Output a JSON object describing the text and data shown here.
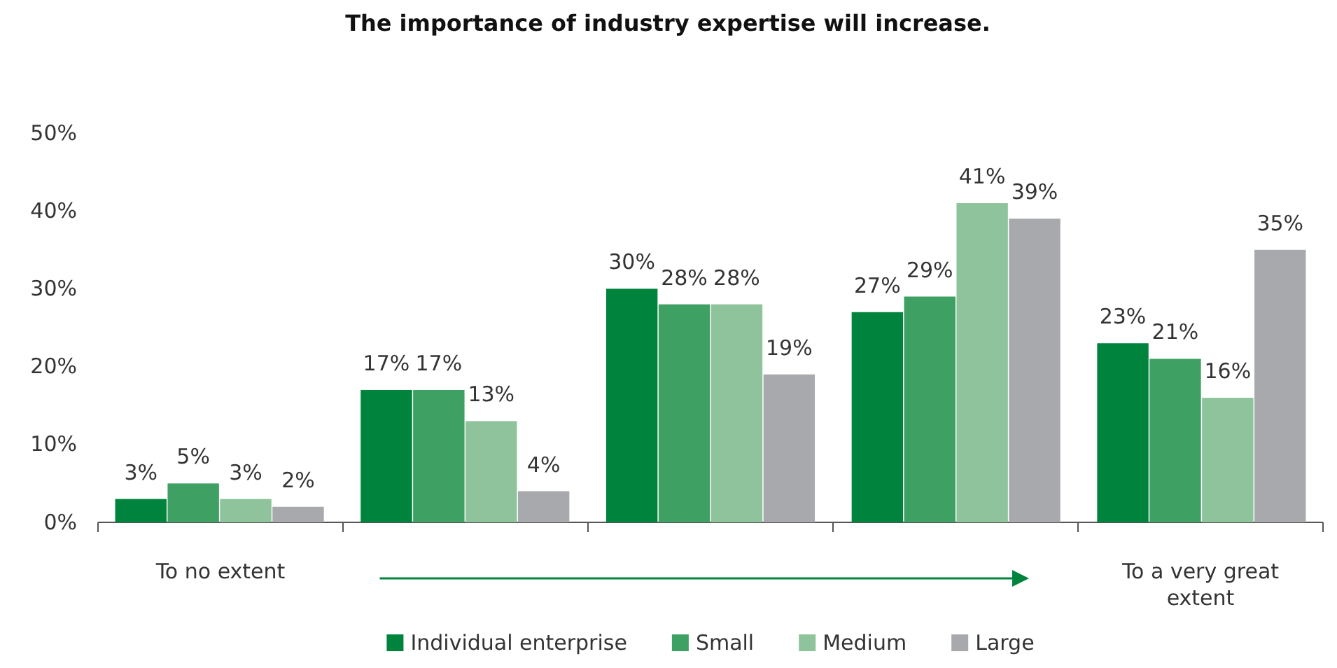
{
  "chart_data": {
    "type": "bar",
    "title": "The importance of industry expertise will increase.",
    "categories": [
      "To no extent",
      null,
      null,
      null,
      "To a very great extent"
    ],
    "series": [
      {
        "name": "Individual enterprise",
        "color": "#00843d",
        "values": [
          3,
          17,
          30,
          27,
          23
        ],
        "value_labels": [
          "3%",
          "17%",
          "30%",
          "27%",
          "23%"
        ]
      },
      {
        "name": "Small",
        "color": "#3fa063",
        "values": [
          5,
          17,
          28,
          29,
          21
        ],
        "value_labels": [
          "5%",
          "17%",
          "28%",
          "29%",
          "21%"
        ]
      },
      {
        "name": "Medium",
        "color": "#8fc39b",
        "values": [
          3,
          13,
          28,
          41,
          16
        ],
        "value_labels": [
          "3%",
          "13%",
          "28%",
          "41%",
          "16%"
        ]
      },
      {
        "name": "Large",
        "color": "#a7a9ac",
        "values": [
          2,
          4,
          19,
          39,
          35
        ],
        "value_labels": [
          "2%",
          "4%",
          "19%",
          "39%",
          "35%"
        ]
      }
    ],
    "ylim": [
      0,
      50
    ],
    "yticks": [
      {
        "value": 0,
        "label": "0%"
      },
      {
        "value": 10,
        "label": "10%"
      },
      {
        "value": 20,
        "label": "20%"
      },
      {
        "value": 30,
        "label": "30%"
      },
      {
        "value": 40,
        "label": "40%"
      },
      {
        "value": 50,
        "label": "50%"
      }
    ],
    "grid": false,
    "legend": "bottom"
  }
}
